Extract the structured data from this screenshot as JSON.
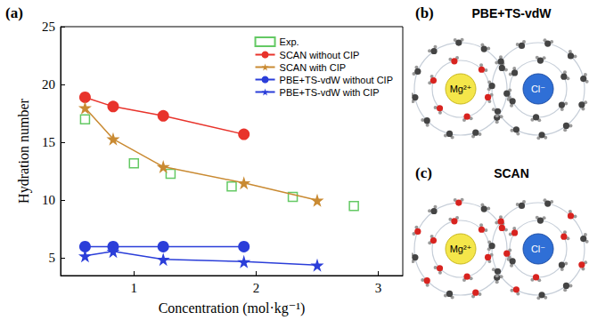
{
  "chart_data": {
    "type": "line",
    "annotations": [
      "(a)"
    ],
    "xlabel": "Concentration (mol·kg⁻¹)",
    "ylabel": "Hydration number",
    "xlim": [
      0.4,
      3.2
    ],
    "xticks": [
      1,
      2,
      3
    ],
    "ylim": [
      3.5,
      25
    ],
    "yticks": [
      5,
      10,
      15,
      20,
      25
    ],
    "grid": false,
    "legend": "upper right",
    "series": [
      {
        "name": "Exp.",
        "type": "scatter",
        "marker": "square_open",
        "color": "#3dbb3d",
        "x": [
          0.6,
          1.0,
          1.3,
          1.8,
          2.3,
          2.8
        ],
        "values": [
          17.0,
          13.2,
          12.3,
          11.2,
          10.3,
          9.5
        ]
      },
      {
        "name": "SCAN without CIP",
        "type": "line",
        "marker": "circle",
        "color": "#e8332b",
        "x": [
          0.6,
          0.83,
          1.24,
          1.9
        ],
        "values": [
          18.9,
          18.1,
          17.3,
          15.7
        ]
      },
      {
        "name": "SCAN with CIP",
        "type": "line",
        "marker": "star",
        "color": "#c98a32",
        "x": [
          0.6,
          0.83,
          1.24,
          1.9,
          2.5
        ],
        "values": [
          18.0,
          15.3,
          12.9,
          11.5,
          10.0
        ]
      },
      {
        "name": "PBE+TS-vdW without CIP",
        "type": "line",
        "marker": "circle",
        "color": "#2b3ed9",
        "x": [
          0.6,
          0.83,
          1.24,
          1.9
        ],
        "values": [
          6.0,
          6.0,
          6.0,
          6.0
        ]
      },
      {
        "name": "PBE+TS-vdW with CIP",
        "type": "line",
        "marker": "star",
        "color": "#2b3ed9",
        "x": [
          0.6,
          0.83,
          1.24,
          1.9,
          2.5
        ],
        "values": [
          5.2,
          5.6,
          4.9,
          4.7,
          4.4
        ]
      }
    ]
  },
  "diagrams": [
    {
      "letter": "(b)",
      "title": "PBE+TS-vdW",
      "ions": [
        "Mg²⁺",
        "Cl⁻"
      ]
    },
    {
      "letter": "(c)",
      "title": "SCAN",
      "ions": [
        "Mg²⁺",
        "Cl⁻"
      ]
    }
  ]
}
